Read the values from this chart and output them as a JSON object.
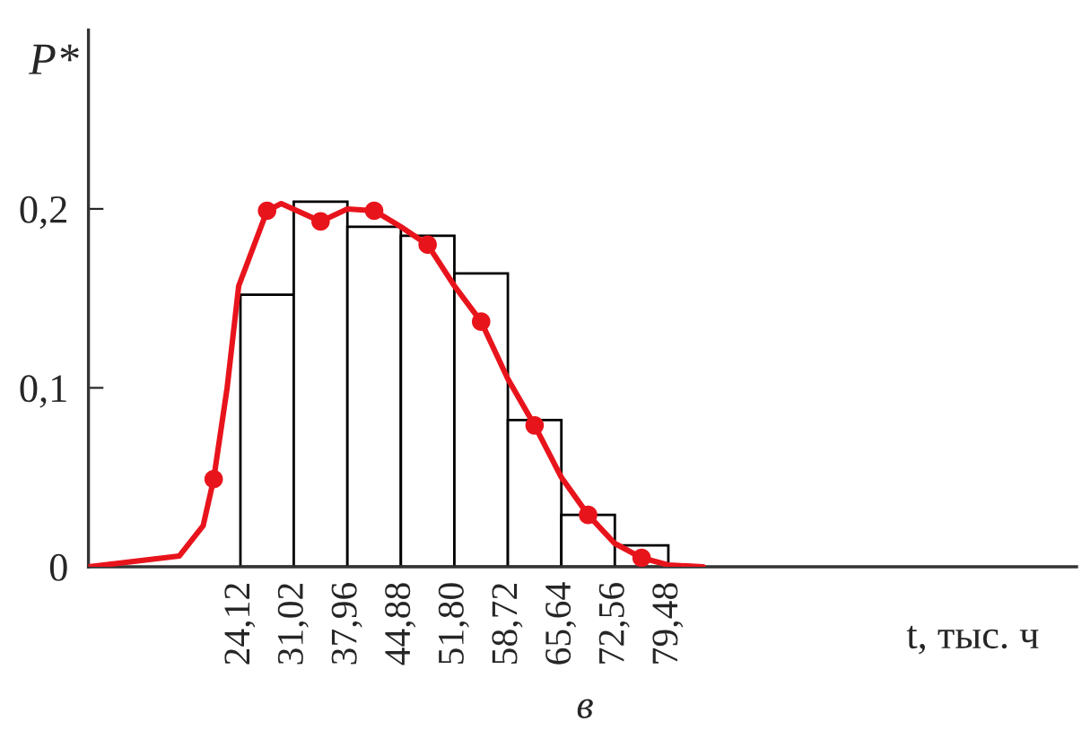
{
  "chart_data": {
    "type": "histogram",
    "ylabel": "P*",
    "xlabel": "t, тыс. ч",
    "annotations": [
      "в"
    ],
    "bins": [
      24.12,
      31.02,
      37.96,
      44.88,
      51.8,
      58.72,
      65.64,
      72.56,
      79.48
    ],
    "values": [
      0.152,
      0.204,
      0.19,
      0.185,
      0.164,
      0.082,
      0.029,
      0.012
    ],
    "color": "#ffffff",
    "series": [
      {
        "type": "line",
        "color": "#e8141c",
        "marker": "none",
        "x": [
          4.46,
          16.2,
          19.3,
          20.66,
          22.4,
          23.9,
          27.57,
          29.4,
          34.49,
          37.96,
          41.42,
          44.88,
          48.34,
          51.8,
          55.26,
          58.72,
          62.18,
          65.64,
          69.1,
          72.56,
          76.02,
          79.48,
          83.97
        ],
        "values": [
          0,
          0.006,
          0.023,
          0.049,
          0.1,
          0.157,
          0.199,
          0.203,
          0.193,
          0.2,
          0.199,
          0.19,
          0.18,
          0.157,
          0.137,
          0.105,
          0.079,
          0.05,
          0.029,
          0.013,
          0.005,
          0.001,
          0
        ]
      },
      {
        "type": "scatter",
        "color": "#e8141c",
        "marker": "circle",
        "x": [
          20.66,
          27.57,
          34.49,
          41.42,
          48.34,
          55.26,
          62.18,
          69.1,
          76.02
        ],
        "values": [
          0.049,
          0.199,
          0.193,
          0.199,
          0.18,
          0.137,
          0.079,
          0.029,
          0.005
        ]
      }
    ],
    "xlim": [
      4.46,
      132.3
    ],
    "ylim": [
      0,
      0.3
    ],
    "xticks": [
      {
        "value": 24.12,
        "label": "24,12"
      },
      {
        "value": 31.02,
        "label": "31,02"
      },
      {
        "value": 37.96,
        "label": "37,96"
      },
      {
        "value": 44.88,
        "label": "44,88"
      },
      {
        "value": 51.8,
        "label": "51,80"
      },
      {
        "value": 58.72,
        "label": "58,72"
      },
      {
        "value": 65.64,
        "label": "65,64"
      },
      {
        "value": 72.56,
        "label": "72,56"
      },
      {
        "value": 79.48,
        "label": "79,48"
      }
    ],
    "yticks": [
      0,
      {
        "value": 0.1,
        "label": "0,1"
      },
      {
        "value": 0.2,
        "label": "0,2"
      }
    ],
    "grid": false,
    "legend": false
  }
}
